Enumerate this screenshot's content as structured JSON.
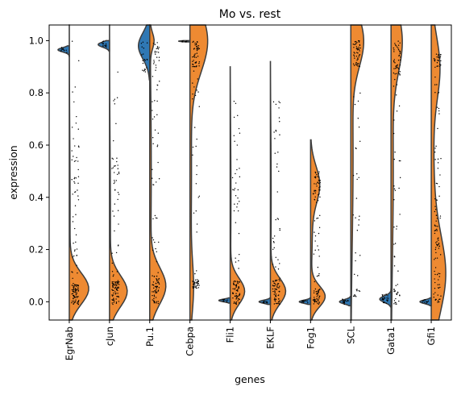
{
  "chart_data": {
    "type": "violin",
    "title": "Mo vs. rest",
    "xlabel": "genes",
    "ylabel": "expression",
    "ylim": [
      -0.07,
      1.06
    ],
    "yticks": [
      0.0,
      0.2,
      0.4,
      0.6,
      0.8,
      1.0
    ],
    "ytick_labels": [
      "0.0",
      "0.2",
      "0.4",
      "0.6",
      "0.8",
      "1.0"
    ],
    "split": true,
    "grid": false,
    "legend": "none",
    "groups": [
      "Mo",
      "rest"
    ],
    "colors": {
      "Mo": "#2f78b4",
      "rest": "#ee8a32",
      "outline": "#3d3d3d"
    },
    "categories": [
      "EgrNab",
      "cJun",
      "Pu.1",
      "Cebpa",
      "Fli1",
      "EKLF",
      "Fog1",
      "SCL",
      "Gata1",
      "Gfi1"
    ],
    "series": [
      {
        "values_center": [
          0.965,
          0.985,
          0.97,
          1.0,
          0.005,
          0.0,
          0.0,
          0.0,
          0.01,
          0.0
        ]
      },
      {
        "values_center": [
          0.03,
          0.03,
          0.05,
          0.98,
          0.04,
          0.03,
          0.02,
          0.97,
          0.98,
          0.9
        ]
      }
    ]
  }
}
